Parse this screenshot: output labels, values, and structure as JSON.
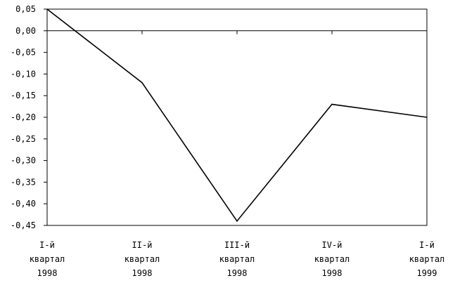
{
  "chart_data": {
    "type": "line",
    "title": "",
    "xlabel": "",
    "ylabel": "",
    "categories": [
      [
        "I-й",
        "квартал",
        "1998"
      ],
      [
        "II-й",
        "квартал",
        "1998"
      ],
      [
        "III-й",
        "квартал",
        "1998"
      ],
      [
        "IV-й",
        "квартал",
        "1998"
      ],
      [
        "I-й",
        "квартал",
        "1999"
      ]
    ],
    "series": [
      {
        "values": [
          0.05,
          -0.12,
          -0.44,
          -0.17,
          -0.2
        ]
      }
    ],
    "ylim": [
      -0.45,
      0.05
    ],
    "yticks": [
      0.05,
      0.0,
      -0.05,
      -0.1,
      -0.15,
      -0.2,
      -0.25,
      -0.3,
      -0.35,
      -0.4,
      -0.45
    ],
    "ytick_labels": [
      "0,05",
      "0,00",
      "-0,05",
      "-0,10",
      "-0,15",
      "-0,20",
      "-0,25",
      "-0,30",
      "-0,35",
      "-0,40",
      "-0,45"
    ],
    "grid": false,
    "legend": "none",
    "line_color": "#000000"
  }
}
